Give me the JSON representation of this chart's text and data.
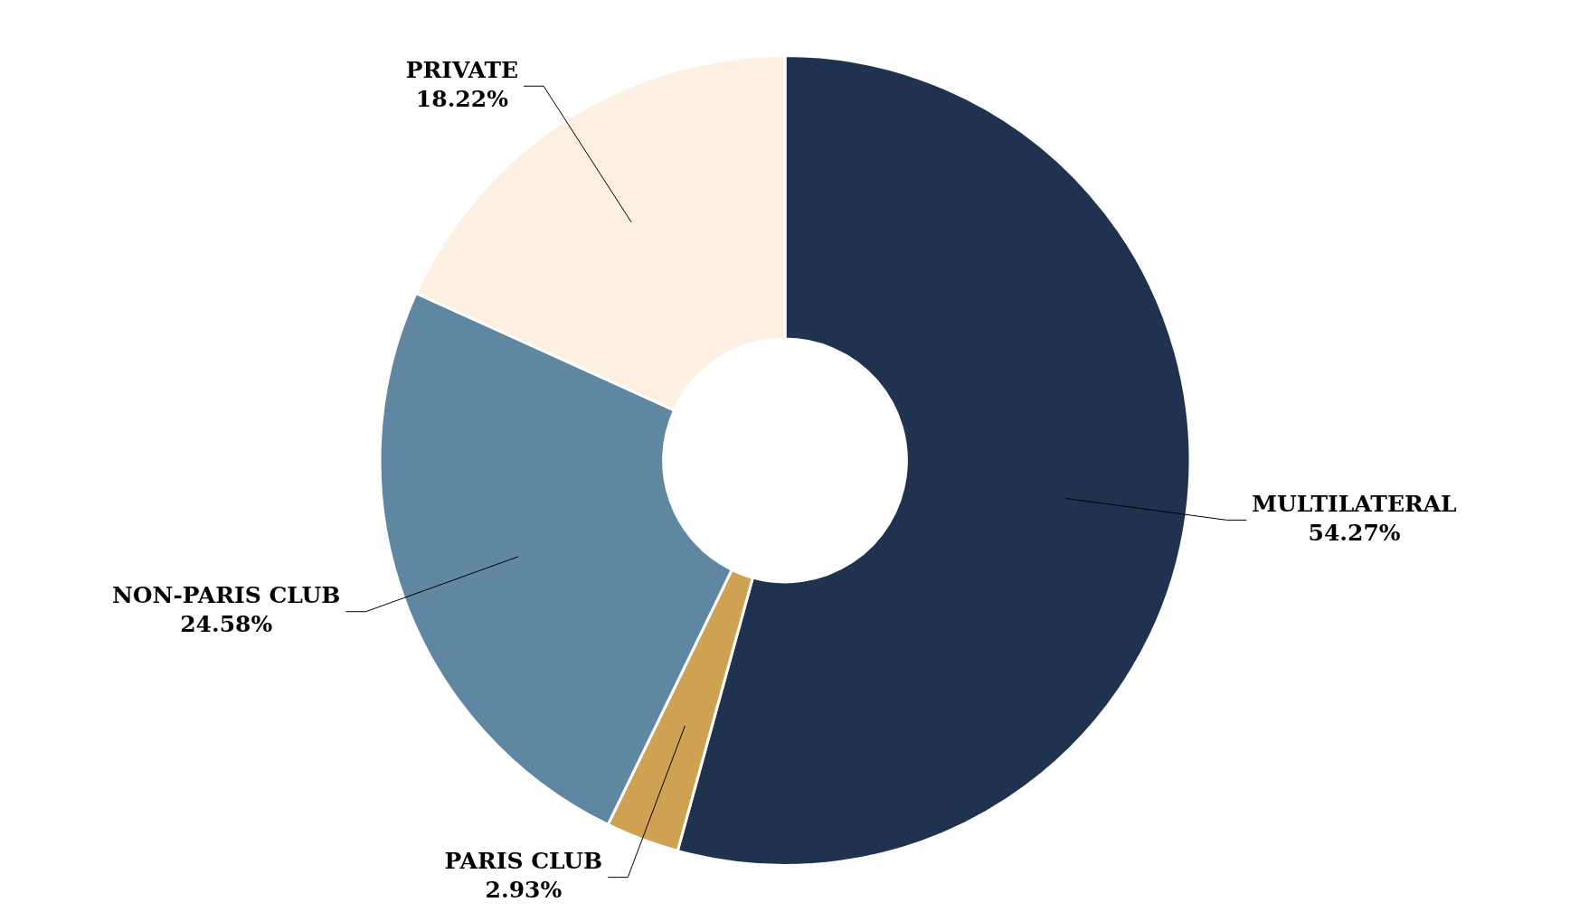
{
  "chart_data": {
    "type": "donut",
    "categories": [
      "MULTILATERAL",
      "PARIS CLUB",
      "NON-PARIS CLUB",
      "PRIVATE"
    ],
    "values": [
      54.27,
      2.93,
      24.58,
      18.22
    ],
    "colors": [
      "#1f3350",
      "#cfa152",
      "#5f87a1",
      "#fdf0e2"
    ],
    "value_labels": [
      "54.27%",
      "2.93%",
      "24.58%",
      "18.22%"
    ],
    "legend": false
  }
}
